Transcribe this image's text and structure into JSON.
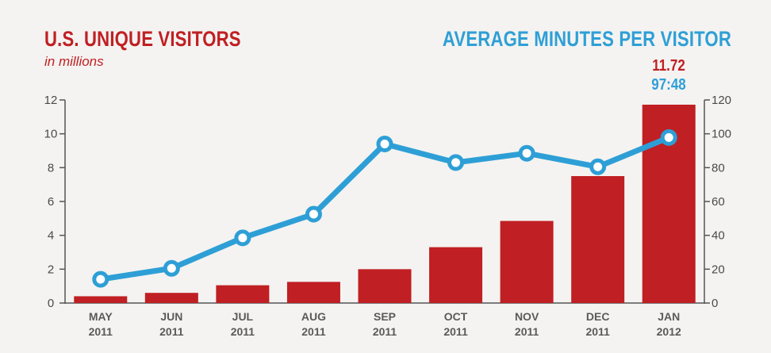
{
  "left_title": "U.S. UNIQUE VISITORS",
  "left_subtitle": "in millions",
  "right_title": "AVERAGE MINUTES PER VISITOR",
  "callout": {
    "visitors": "11.72",
    "minutes": "97:48"
  },
  "colors": {
    "bars": "#c01f23",
    "line": "#2e9fd6",
    "marker_fill": "#ffffff",
    "axis": "#555555"
  },
  "chart_data": {
    "type": "bar",
    "categories": [
      [
        "MAY",
        "2011"
      ],
      [
        "JUN",
        "2011"
      ],
      [
        "JUL",
        "2011"
      ],
      [
        "AUG",
        "2011"
      ],
      [
        "SEP",
        "2011"
      ],
      [
        "OCT",
        "2011"
      ],
      [
        "NOV",
        "2011"
      ],
      [
        "DEC",
        "2011"
      ],
      [
        "JAN",
        "2012"
      ]
    ],
    "series": [
      {
        "name": "U.S. UNIQUE VISITORS",
        "type": "bar",
        "axis": "left",
        "values": [
          0.4,
          0.6,
          1.05,
          1.25,
          2.0,
          3.3,
          4.85,
          7.5,
          11.72
        ]
      },
      {
        "name": "AVERAGE MINUTES PER VISITOR",
        "type": "line",
        "axis": "right",
        "values": [
          14,
          20.5,
          38.5,
          52.5,
          94,
          83,
          88.5,
          80.5,
          97.8
        ]
      }
    ],
    "left_axis": {
      "ylim": [
        0,
        12
      ],
      "ticks": [
        0,
        2,
        4,
        6,
        8,
        10,
        12
      ]
    },
    "right_axis": {
      "ylim": [
        0,
        120
      ],
      "ticks": [
        0,
        20,
        40,
        60,
        80,
        100,
        120
      ]
    },
    "grid": false,
    "legend": "none"
  }
}
